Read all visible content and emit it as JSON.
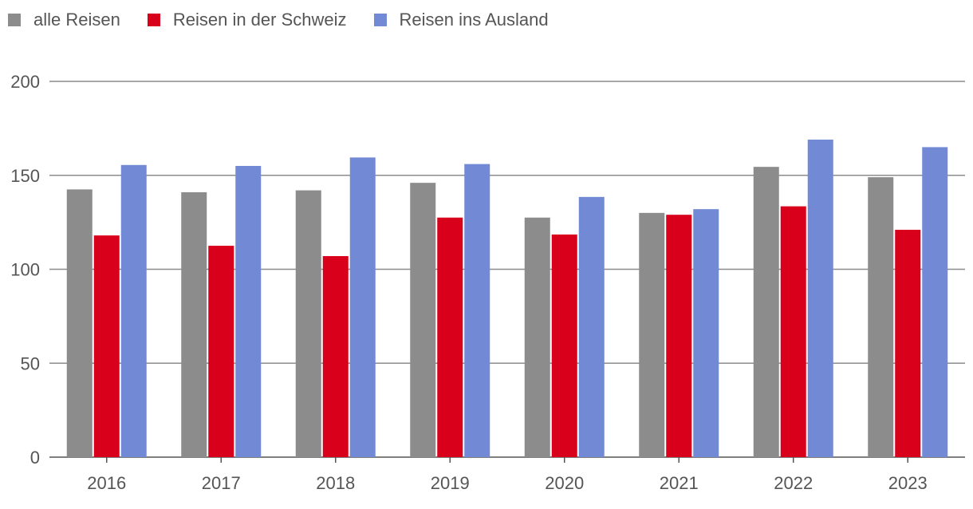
{
  "chart_data": {
    "type": "bar",
    "title": "",
    "xlabel": "",
    "ylabel": "",
    "categories": [
      "2016",
      "2017",
      "2018",
      "2019",
      "2020",
      "2021",
      "2022",
      "2023"
    ],
    "series": [
      {
        "name": "alle Reisen",
        "color": "#8c8c8c",
        "values": [
          142.5,
          141,
          142,
          146,
          127.5,
          130,
          154.5,
          149
        ]
      },
      {
        "name": "Reisen in der Schweiz",
        "color": "#d9001b",
        "values": [
          118,
          112.5,
          107,
          127.5,
          118.5,
          129,
          133.5,
          121
        ]
      },
      {
        "name": "Reisen ins Ausland",
        "color": "#7289d6",
        "values": [
          155.5,
          155,
          159.5,
          156,
          138.5,
          132,
          169,
          165
        ]
      }
    ],
    "ylim": [
      0,
      200
    ],
    "yticks": [
      0,
      50,
      100,
      150,
      200
    ],
    "grid": true,
    "legend_position": "top-left"
  }
}
